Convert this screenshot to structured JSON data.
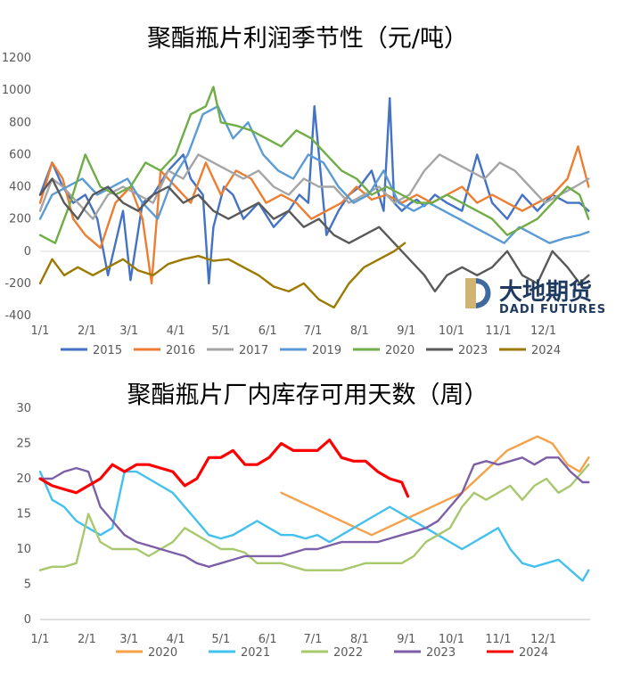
{
  "chart_data": [
    {
      "type": "line",
      "title": "聚酯瓶片利润季节性（元/吨）",
      "x_ticks": [
        "1/1",
        "2/1",
        "3/1",
        "4/1",
        "5/1",
        "6/1",
        "7/1",
        "8/1",
        "9/1",
        "10/1",
        "11/1",
        "12/1"
      ],
      "y_ticks": [
        "1200",
        "1000",
        "800",
        "600",
        "400",
        "200",
        "0",
        "-200",
        "-400"
      ],
      "ylim": [
        -400,
        1200
      ],
      "x_unit": "day of year",
      "series": [
        {
          "name": "2015",
          "color": "#4472c4",
          "x": [
            0,
            8,
            15,
            22,
            30,
            38,
            45,
            55,
            60,
            68,
            75,
            85,
            95,
            100,
            108,
            112,
            115,
            122,
            128,
            135,
            145,
            155,
            165,
            172,
            178,
            182,
            190,
            198,
            205,
            212,
            220,
            228,
            232,
            235,
            240,
            246,
            250,
            255,
            262,
            270,
            280,
            290,
            300,
            310,
            320,
            330,
            340,
            350,
            358,
            364
          ],
          "y": [
            350,
            550,
            400,
            300,
            350,
            200,
            -150,
            250,
            -180,
            300,
            350,
            500,
            600,
            450,
            350,
            -200,
            150,
            400,
            350,
            200,
            300,
            150,
            250,
            350,
            300,
            900,
            100,
            250,
            350,
            400,
            500,
            250,
            950,
            300,
            250,
            300,
            320,
            280,
            350,
            300,
            250,
            600,
            300,
            200,
            350,
            250,
            350,
            300,
            300,
            250
          ]
        },
        {
          "name": "2016",
          "color": "#ed7d31",
          "x": [
            0,
            8,
            15,
            22,
            30,
            40,
            50,
            60,
            68,
            74,
            80,
            90,
            100,
            110,
            120,
            130,
            140,
            150,
            160,
            170,
            180,
            190,
            200,
            210,
            220,
            230,
            240,
            250,
            260,
            270,
            280,
            290,
            300,
            310,
            320,
            330,
            340,
            350,
            357,
            364
          ],
          "y": [
            300,
            550,
            450,
            200,
            100,
            20,
            300,
            400,
            200,
            -200,
            500,
            400,
            300,
            550,
            350,
            500,
            450,
            300,
            350,
            300,
            200,
            250,
            300,
            400,
            320,
            350,
            300,
            350,
            300,
            350,
            400,
            300,
            350,
            300,
            250,
            300,
            350,
            450,
            650,
            400
          ]
        },
        {
          "name": "2017",
          "color": "#a5a5a5",
          "x": [
            0,
            8,
            15,
            25,
            35,
            45,
            55,
            65,
            75,
            85,
            95,
            105,
            115,
            125,
            135,
            145,
            155,
            165,
            175,
            185,
            195,
            205,
            215,
            225,
            235,
            245,
            255,
            265,
            275,
            285,
            295,
            305,
            315,
            325,
            335,
            345,
            355,
            364
          ],
          "y": [
            250,
            450,
            400,
            300,
            200,
            350,
            400,
            350,
            300,
            500,
            450,
            600,
            550,
            500,
            450,
            500,
            400,
            350,
            450,
            400,
            400,
            300,
            350,
            400,
            300,
            350,
            500,
            600,
            550,
            500,
            450,
            550,
            500,
            400,
            300,
            350,
            400,
            450
          ]
        },
        {
          "name": "2019",
          "color": "#5b9bd5",
          "x": [
            0,
            8,
            18,
            28,
            38,
            48,
            58,
            68,
            78,
            88,
            98,
            108,
            118,
            128,
            138,
            148,
            158,
            168,
            178,
            188,
            198,
            208,
            218,
            228,
            238,
            248,
            258,
            268,
            278,
            288,
            298,
            308,
            318,
            328,
            338,
            348,
            358,
            364
          ],
          "y": [
            200,
            350,
            400,
            450,
            350,
            400,
            450,
            300,
            200,
            450,
            600,
            850,
            900,
            700,
            800,
            600,
            500,
            450,
            600,
            550,
            400,
            300,
            350,
            500,
            300,
            250,
            300,
            250,
            200,
            150,
            100,
            50,
            150,
            100,
            50,
            80,
            100,
            120
          ]
        },
        {
          "name": "2020",
          "color": "#70ad47",
          "x": [
            0,
            10,
            20,
            30,
            40,
            50,
            60,
            70,
            80,
            90,
            100,
            110,
            115,
            120,
            130,
            140,
            150,
            160,
            170,
            180,
            190,
            200,
            210,
            220,
            230,
            240,
            250,
            260,
            270,
            280,
            290,
            300,
            310,
            320,
            330,
            340,
            350,
            358,
            364
          ],
          "y": [
            100,
            50,
            300,
            600,
            400,
            350,
            400,
            550,
            500,
            600,
            850,
            900,
            1020,
            800,
            780,
            750,
            700,
            650,
            750,
            700,
            600,
            500,
            450,
            350,
            400,
            350,
            300,
            300,
            350,
            300,
            250,
            200,
            100,
            150,
            200,
            300,
            400,
            350,
            200
          ]
        },
        {
          "name": "2023",
          "color": "#595959",
          "x": [
            0,
            8,
            16,
            25,
            35,
            45,
            55,
            65,
            75,
            85,
            95,
            105,
            115,
            125,
            135,
            145,
            155,
            165,
            175,
            185,
            195,
            205,
            215,
            225,
            235,
            245,
            255,
            262,
            270,
            280,
            290,
            300,
            310,
            320,
            330,
            340,
            350,
            358,
            364
          ],
          "y": [
            350,
            450,
            300,
            200,
            350,
            400,
            300,
            250,
            350,
            400,
            300,
            350,
            250,
            200,
            250,
            300,
            200,
            250,
            150,
            200,
            100,
            50,
            100,
            150,
            50,
            -50,
            -150,
            -250,
            -150,
            -100,
            -150,
            -100,
            0,
            -150,
            -200,
            0,
            -100,
            -200,
            -150
          ]
        },
        {
          "name": "2024",
          "color": "#9c7a00",
          "x": [
            0,
            8,
            16,
            25,
            35,
            45,
            55,
            65,
            75,
            85,
            95,
            105,
            115,
            125,
            135,
            145,
            155,
            165,
            175,
            185,
            195,
            205,
            215,
            225,
            235,
            242
          ],
          "y": [
            -200,
            -50,
            -150,
            -100,
            -150,
            -100,
            -50,
            -120,
            -150,
            -80,
            -50,
            -30,
            -60,
            -50,
            -100,
            -150,
            -220,
            -250,
            -200,
            -300,
            -350,
            -200,
            -100,
            -50,
            0,
            50
          ]
        }
      ]
    },
    {
      "type": "line",
      "title": "聚酯瓶片厂内库存可用天数（周）",
      "x_ticks": [
        "1/1",
        "2/1",
        "3/1",
        "4/1",
        "5/1",
        "6/1",
        "7/1",
        "8/1",
        "9/1",
        "10/1",
        "11/1",
        "12/1"
      ],
      "y_ticks": [
        "30",
        "25",
        "20",
        "15",
        "10",
        "5",
        "0"
      ],
      "ylim": [
        0,
        30
      ],
      "x_unit": "day of year",
      "series": [
        {
          "name": "2020",
          "color": "#f4a14a",
          "x": [
            160,
            170,
            180,
            190,
            200,
            210,
            220,
            230,
            240,
            250,
            260,
            270,
            280,
            290,
            300,
            310,
            320,
            330,
            340,
            350,
            358,
            364
          ],
          "y": [
            18,
            17,
            16,
            15,
            14,
            13,
            12,
            13,
            14,
            15,
            16,
            17,
            18,
            20,
            22,
            24,
            25,
            26,
            25,
            22,
            21,
            23
          ]
        },
        {
          "name": "2021",
          "color": "#42c0ee",
          "x": [
            0,
            8,
            16,
            24,
            32,
            40,
            48,
            56,
            64,
            72,
            80,
            88,
            96,
            104,
            112,
            120,
            128,
            136,
            144,
            152,
            160,
            168,
            176,
            184,
            192,
            200,
            208,
            216,
            224,
            232,
            240,
            248,
            256,
            264,
            272,
            280,
            288,
            296,
            304,
            312,
            320,
            328,
            336,
            344,
            352,
            360,
            364
          ],
          "y": [
            21,
            17,
            16,
            14,
            13,
            12,
            13,
            21,
            21,
            20,
            19,
            18,
            16,
            14,
            12,
            11.5,
            12,
            13,
            14,
            13,
            12,
            12,
            11.5,
            12,
            11,
            12,
            13,
            14,
            15,
            16,
            15,
            14,
            13,
            12,
            11,
            10,
            11,
            12,
            13,
            10,
            8,
            7.5,
            8,
            8.5,
            7,
            5.5,
            7
          ]
        },
        {
          "name": "2022",
          "color": "#a8c86e",
          "x": [
            0,
            8,
            16,
            24,
            32,
            40,
            48,
            56,
            64,
            72,
            80,
            88,
            96,
            104,
            112,
            120,
            128,
            136,
            144,
            152,
            160,
            168,
            176,
            184,
            192,
            200,
            208,
            216,
            224,
            232,
            240,
            248,
            256,
            264,
            272,
            280,
            288,
            296,
            304,
            312,
            320,
            328,
            336,
            344,
            352,
            360,
            364
          ],
          "y": [
            7,
            7.5,
            7.5,
            8,
            15,
            11,
            10,
            10,
            10,
            9,
            10,
            11,
            13,
            12,
            11,
            10,
            10,
            9.5,
            8,
            8,
            8,
            7.5,
            7,
            7,
            7,
            7,
            7.5,
            8,
            8,
            8,
            8,
            9,
            11,
            12,
            13,
            16,
            18,
            17,
            18,
            19,
            17,
            19,
            20,
            18,
            19,
            21,
            22
          ]
        },
        {
          "name": "2023",
          "color": "#7c5fa6",
          "x": [
            0,
            8,
            16,
            24,
            32,
            40,
            48,
            56,
            64,
            72,
            80,
            88,
            96,
            104,
            112,
            120,
            128,
            136,
            144,
            152,
            160,
            168,
            176,
            184,
            192,
            200,
            208,
            216,
            224,
            232,
            240,
            248,
            256,
            264,
            272,
            280,
            288,
            296,
            304,
            312,
            320,
            328,
            336,
            344,
            352,
            360,
            364
          ],
          "y": [
            20,
            20,
            21,
            21.5,
            21,
            16,
            14,
            12,
            11,
            10.5,
            10,
            9.5,
            9,
            8,
            7.5,
            8,
            8.5,
            9,
            9,
            9,
            9,
            9.5,
            10,
            10,
            10.5,
            11,
            11,
            11,
            11,
            11.5,
            12,
            12.5,
            13,
            14,
            16,
            18,
            22,
            22.5,
            22,
            22.5,
            23,
            22,
            23,
            23,
            21,
            19.5,
            19.5
          ]
        },
        {
          "name": "2024",
          "color": "#ff0000",
          "x": [
            0,
            8,
            16,
            24,
            32,
            40,
            48,
            56,
            64,
            72,
            80,
            88,
            96,
            104,
            112,
            120,
            128,
            136,
            144,
            152,
            160,
            168,
            176,
            184,
            192,
            200,
            208,
            216,
            224,
            232,
            240,
            244
          ],
          "y": [
            20,
            19,
            18.5,
            18,
            19,
            20,
            22,
            21,
            22,
            22,
            21.5,
            21,
            19,
            20,
            23,
            23,
            24,
            22,
            22,
            23,
            25,
            24,
            24,
            24,
            25.5,
            23,
            22.5,
            22.5,
            21,
            20,
            19.5,
            17.5
          ]
        }
      ]
    }
  ],
  "watermark": {
    "cn": "大地期货",
    "en": "DADI FUTURES"
  }
}
